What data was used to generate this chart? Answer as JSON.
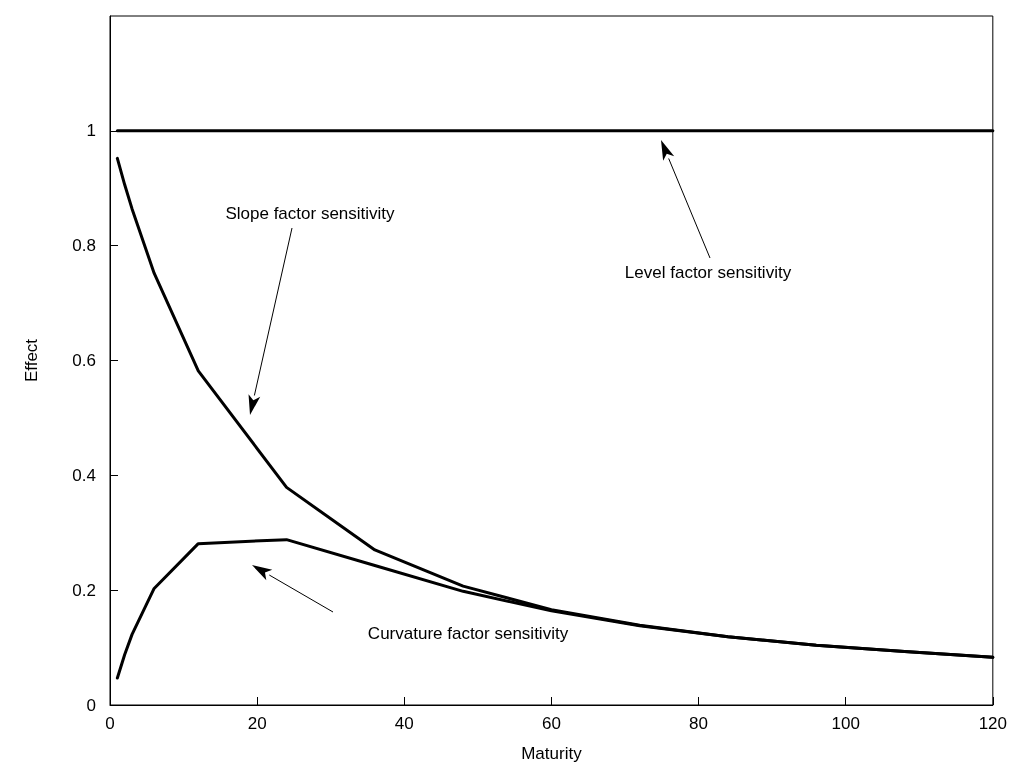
{
  "chart_data": {
    "type": "line",
    "xlabel": "Maturity",
    "ylabel": "Effect",
    "xlim": [
      0,
      120
    ],
    "xticks": [
      0,
      20,
      40,
      60,
      80,
      100,
      120
    ],
    "ylim": [
      0,
      1.2
    ],
    "yticks": [
      0,
      0.2,
      0.4,
      0.6,
      0.8,
      1
    ],
    "grid": false,
    "marker": "none",
    "line_style": "solid",
    "series": [
      {
        "color": "#000000",
        "x": [
          1,
          120
        ],
        "values": [
          1,
          1
        ]
      },
      {
        "color": "#000000",
        "x": [
          1,
          2,
          3,
          6,
          12,
          24,
          36,
          48,
          60,
          72,
          84,
          96,
          108,
          120
        ],
        "values": [
          0.952,
          0.906,
          0.864,
          0.752,
          0.582,
          0.379,
          0.27,
          0.207,
          0.166,
          0.139,
          0.119,
          0.104,
          0.093,
          0.083
        ]
      },
      {
        "color": "#000000",
        "x": [
          1,
          2,
          3,
          6,
          12,
          24,
          36,
          48,
          60,
          72,
          84,
          96,
          108,
          120
        ],
        "values": [
          0.047,
          0.088,
          0.123,
          0.203,
          0.281,
          0.288,
          0.243,
          0.198,
          0.164,
          0.138,
          0.119,
          0.104,
          0.093,
          0.083
        ]
      }
    ],
    "annotations": [
      "Slope factor sensitivity",
      "Level factor sensitivity",
      "Curvature factor sensitivity"
    ]
  }
}
